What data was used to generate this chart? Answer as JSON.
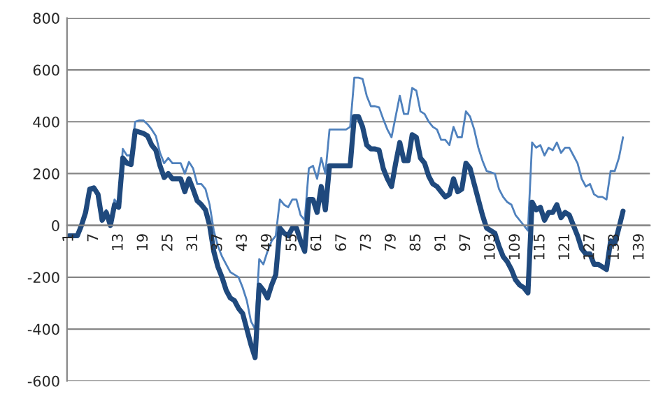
{
  "chart_data": {
    "type": "line",
    "categories": [
      "1",
      null,
      null,
      null,
      null,
      null,
      "7",
      null,
      null,
      null,
      null,
      null,
      "13",
      null,
      null,
      null,
      null,
      null,
      "19",
      null,
      null,
      null,
      null,
      null,
      "25",
      null,
      null,
      null,
      null,
      null,
      "31",
      null,
      null,
      null,
      null,
      null,
      "37",
      null,
      null,
      null,
      null,
      null,
      "43",
      null,
      null,
      null,
      null,
      null,
      "49",
      null,
      null,
      null,
      null,
      null,
      "55",
      null,
      null,
      null,
      null,
      null,
      "61",
      null,
      null,
      null,
      null,
      null,
      "67",
      null,
      null,
      null,
      null,
      null,
      "73",
      null,
      null,
      null,
      null,
      null,
      "79",
      null,
      null,
      null,
      null,
      null,
      "85",
      null,
      null,
      null,
      null,
      null,
      "91",
      null,
      null,
      null,
      null,
      null,
      "97",
      null,
      null,
      null,
      null,
      null,
      "103",
      null,
      null,
      null,
      null,
      null,
      "109",
      null,
      null,
      null,
      null,
      null,
      "115",
      null,
      null,
      null,
      null,
      null,
      "121",
      null,
      null,
      null,
      null,
      null,
      "127",
      null,
      null,
      null,
      null,
      null,
      "133",
      null,
      null,
      null,
      null,
      null,
      "139",
      null,
      null
    ],
    "series": [
      {
        "color": "#4f81bd",
        "values": [
          -40,
          -40,
          -40,
          0,
          50,
          145,
          150,
          125,
          30,
          60,
          10,
          100,
          80,
          295,
          270,
          270,
          400,
          405,
          405,
          390,
          370,
          345,
          280,
          240,
          260,
          240,
          240,
          240,
          200,
          245,
          220,
          160,
          160,
          140,
          80,
          -20,
          -80,
          -120,
          -150,
          -180,
          -190,
          -200,
          -240,
          -290,
          -370,
          -400,
          -130,
          -150,
          -100,
          -60,
          -40,
          100,
          80,
          70,
          100,
          100,
          40,
          20,
          220,
          230,
          180,
          260,
          200,
          370,
          370,
          370,
          370,
          370,
          380,
          570,
          570,
          565,
          500,
          460,
          460,
          455,
          410,
          370,
          340,
          420,
          500,
          430,
          430,
          530,
          520,
          440,
          430,
          400,
          380,
          370,
          330,
          330,
          310,
          380,
          340,
          340,
          440,
          420,
          370,
          300,
          250,
          210,
          205,
          200,
          140,
          110,
          90,
          80,
          40,
          20,
          0,
          -20,
          320,
          300,
          310,
          270,
          300,
          290,
          320,
          280,
          300,
          300,
          270,
          240,
          180,
          150,
          160,
          120,
          110,
          110,
          100,
          210,
          210,
          260,
          340,
          null,
          null,
          null,
          null,
          null,
          null
        ]
      },
      {
        "color": "#1f497d",
        "values": [
          -40,
          -40,
          -40,
          0,
          50,
          140,
          145,
          120,
          20,
          50,
          0,
          80,
          70,
          260,
          240,
          235,
          365,
          360,
          355,
          345,
          310,
          290,
          230,
          185,
          200,
          180,
          180,
          180,
          130,
          180,
          140,
          95,
          80,
          60,
          0,
          -100,
          -160,
          -200,
          -250,
          -280,
          -290,
          -320,
          -340,
          -400,
          -460,
          -510,
          -230,
          -250,
          -280,
          -230,
          -190,
          -10,
          -30,
          -40,
          -10,
          -10,
          -60,
          -100,
          100,
          100,
          50,
          150,
          60,
          230,
          230,
          230,
          230,
          230,
          230,
          420,
          420,
          380,
          310,
          295,
          295,
          290,
          220,
          180,
          150,
          240,
          320,
          250,
          250,
          350,
          340,
          260,
          240,
          190,
          160,
          150,
          130,
          110,
          120,
          180,
          130,
          140,
          240,
          220,
          160,
          100,
          40,
          -10,
          -20,
          -30,
          -80,
          -120,
          -140,
          -170,
          -210,
          -230,
          -240,
          -260,
          90,
          60,
          70,
          20,
          50,
          50,
          80,
          30,
          50,
          40,
          0,
          -40,
          -90,
          -110,
          -110,
          -150,
          -150,
          -160,
          -170,
          -60,
          -70,
          -10,
          55,
          null,
          null,
          null,
          null,
          null,
          null
        ]
      }
    ],
    "ylim": [
      -600,
      800
    ],
    "yticks": [
      -600,
      -400,
      -200,
      0,
      200,
      400,
      600,
      800
    ],
    "grid": "y"
  }
}
